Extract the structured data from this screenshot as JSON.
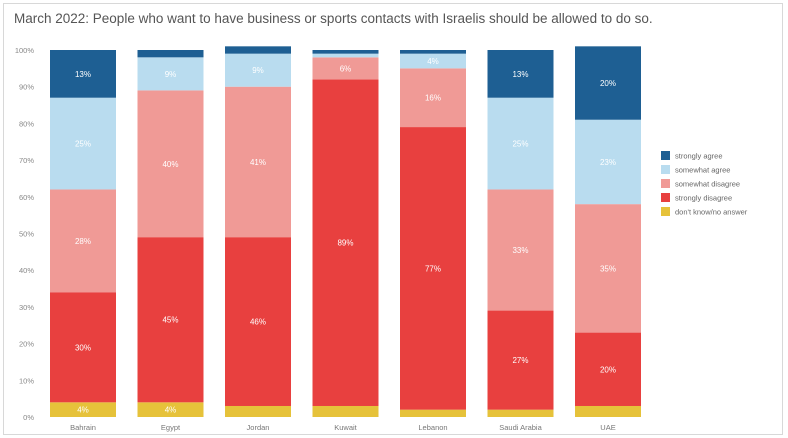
{
  "title": "March 2022: People who want to have business or sports contacts with Israelis should be allowed to do so.",
  "chart_data": {
    "type": "bar",
    "stacked": true,
    "categories": [
      "Bahrain",
      "Egypt",
      "Jordan",
      "Kuwait",
      "Lebanon",
      "Saudi Arabia",
      "UAE"
    ],
    "ylim": [
      0,
      100
    ],
    "yticks": [
      "0%",
      "10%",
      "20%",
      "30%",
      "40%",
      "50%",
      "60%",
      "70%",
      "80%",
      "90%",
      "100%"
    ],
    "series": [
      {
        "name": "don't know/no answer",
        "color": "#e6c23a",
        "values": [
          4,
          4,
          3,
          3,
          2,
          2,
          3
        ],
        "labels": [
          "4%",
          "4%",
          "",
          "",
          "",
          "",
          ""
        ]
      },
      {
        "name": "strongly disagree",
        "color": "#e8403f",
        "values": [
          30,
          45,
          46,
          89,
          77,
          27,
          20
        ],
        "labels": [
          "30%",
          "45%",
          "46%",
          "89%",
          "77%",
          "27%",
          "20%"
        ]
      },
      {
        "name": "somewhat disagree",
        "color": "#f09a96",
        "values": [
          28,
          40,
          41,
          6,
          16,
          33,
          35
        ],
        "labels": [
          "28%",
          "40%",
          "41%",
          "6%",
          "16%",
          "33%",
          "35%"
        ]
      },
      {
        "name": "somewhat agree",
        "color": "#b9dcef",
        "values": [
          25,
          9,
          9,
          1,
          4,
          25,
          23
        ],
        "labels": [
          "25%",
          "9%",
          "9%",
          "",
          "4%",
          "25%",
          "23%"
        ]
      },
      {
        "name": "strongly agree",
        "color": "#1e5f93",
        "values": [
          13,
          2,
          2,
          1,
          1,
          13,
          20
        ],
        "labels": [
          "13%",
          "",
          "",
          "",
          "",
          "13%",
          "20%"
        ]
      }
    ],
    "legend": {
      "position": "right",
      "items": [
        "strongly agree",
        "somewhat agree",
        "somewhat disagree",
        "strongly disagree",
        "don't know/no answer"
      ]
    }
  }
}
